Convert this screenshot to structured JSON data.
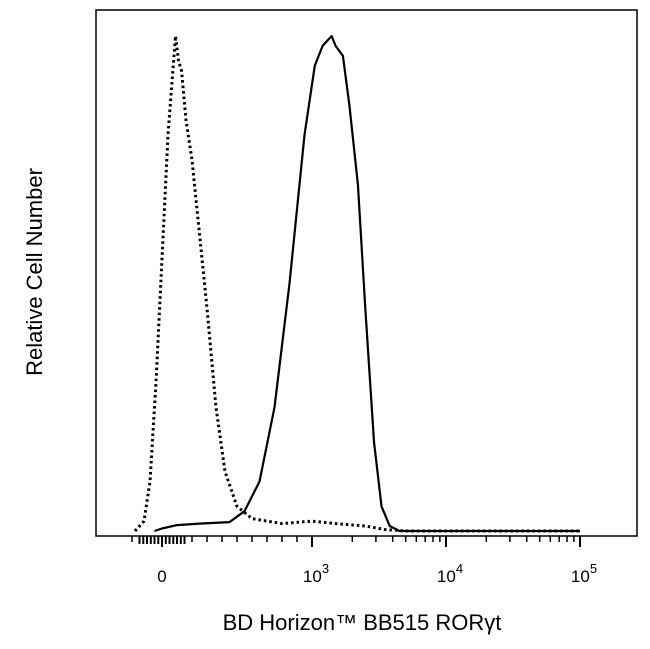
{
  "chart_data": {
    "type": "line",
    "xlabel": "BD Horizon™ BB515  RORγt",
    "ylabel": "Relative Cell Number",
    "x_scale": "biexponential",
    "x_ticks": [
      {
        "value": 0,
        "base": "0",
        "exp": ""
      },
      {
        "value": 1000,
        "base": "10",
        "exp": "3"
      },
      {
        "value": 10000,
        "base": "10",
        "exp": "4"
      },
      {
        "value": 100000,
        "base": "10",
        "exp": "5"
      }
    ],
    "grid": false,
    "series": [
      {
        "style": "dotted",
        "points": [
          [
            -180,
            0.0
          ],
          [
            -120,
            0.02
          ],
          [
            -80,
            0.1
          ],
          [
            -40,
            0.3
          ],
          [
            0,
            0.55
          ],
          [
            40,
            0.8
          ],
          [
            70,
            0.92
          ],
          [
            90,
            1.0
          ],
          [
            110,
            0.95
          ],
          [
            130,
            0.93
          ],
          [
            160,
            0.83
          ],
          [
            200,
            0.75
          ],
          [
            240,
            0.63
          ],
          [
            300,
            0.45
          ],
          [
            360,
            0.25
          ],
          [
            420,
            0.12
          ],
          [
            500,
            0.05
          ],
          [
            600,
            0.025
          ],
          [
            800,
            0.015
          ],
          [
            1000,
            0.02
          ],
          [
            1500,
            0.015
          ],
          [
            2500,
            0.01
          ],
          [
            3500,
            0.003
          ],
          [
            5000,
            0.0
          ],
          [
            100000,
            0.0
          ]
        ]
      },
      {
        "style": "solid",
        "points": [
          [
            -50,
            0.0
          ],
          [
            0,
            0.005
          ],
          [
            100,
            0.012
          ],
          [
            250,
            0.015
          ],
          [
            450,
            0.018
          ],
          [
            550,
            0.04
          ],
          [
            650,
            0.1
          ],
          [
            750,
            0.25
          ],
          [
            850,
            0.5
          ],
          [
            950,
            0.8
          ],
          [
            1050,
            0.94
          ],
          [
            1200,
            0.98
          ],
          [
            1400,
            1.0
          ],
          [
            1500,
            0.98
          ],
          [
            1700,
            0.96
          ],
          [
            1900,
            0.86
          ],
          [
            2200,
            0.7
          ],
          [
            2500,
            0.45
          ],
          [
            2900,
            0.18
          ],
          [
            3300,
            0.05
          ],
          [
            3800,
            0.01
          ],
          [
            4500,
            0.0
          ],
          [
            100000,
            0.0
          ]
        ]
      }
    ]
  }
}
